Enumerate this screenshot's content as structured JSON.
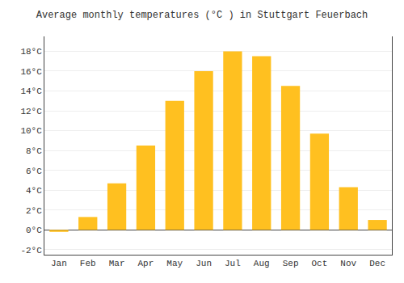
{
  "chart_data": {
    "type": "bar",
    "title": "Average monthly temperatures (°C ) in Stuttgart Feuerbach",
    "categories": [
      "Jan",
      "Feb",
      "Mar",
      "Apr",
      "May",
      "Jun",
      "Jul",
      "Aug",
      "Sep",
      "Oct",
      "Nov",
      "Dec"
    ],
    "values": [
      -0.2,
      1.3,
      4.7,
      8.5,
      13.0,
      16.0,
      18.0,
      17.5,
      14.5,
      9.7,
      4.3,
      1.0
    ],
    "color": "#FFC020",
    "ylim": [
      -2.5,
      19.5
    ],
    "yticks": [
      {
        "value": -2,
        "label": "-2°C"
      },
      {
        "value": 0,
        "label": "0°C"
      },
      {
        "value": 2,
        "label": "2°C"
      },
      {
        "value": 4,
        "label": "4°C"
      },
      {
        "value": 6,
        "label": "6°C"
      },
      {
        "value": 8,
        "label": "8°C"
      },
      {
        "value": 10,
        "label": "10°C"
      },
      {
        "value": 12,
        "label": "12°C"
      },
      {
        "value": 14,
        "label": "14°C"
      },
      {
        "value": 16,
        "label": "16°C"
      },
      {
        "value": 18,
        "label": "18°C"
      }
    ],
    "grid": true
  }
}
